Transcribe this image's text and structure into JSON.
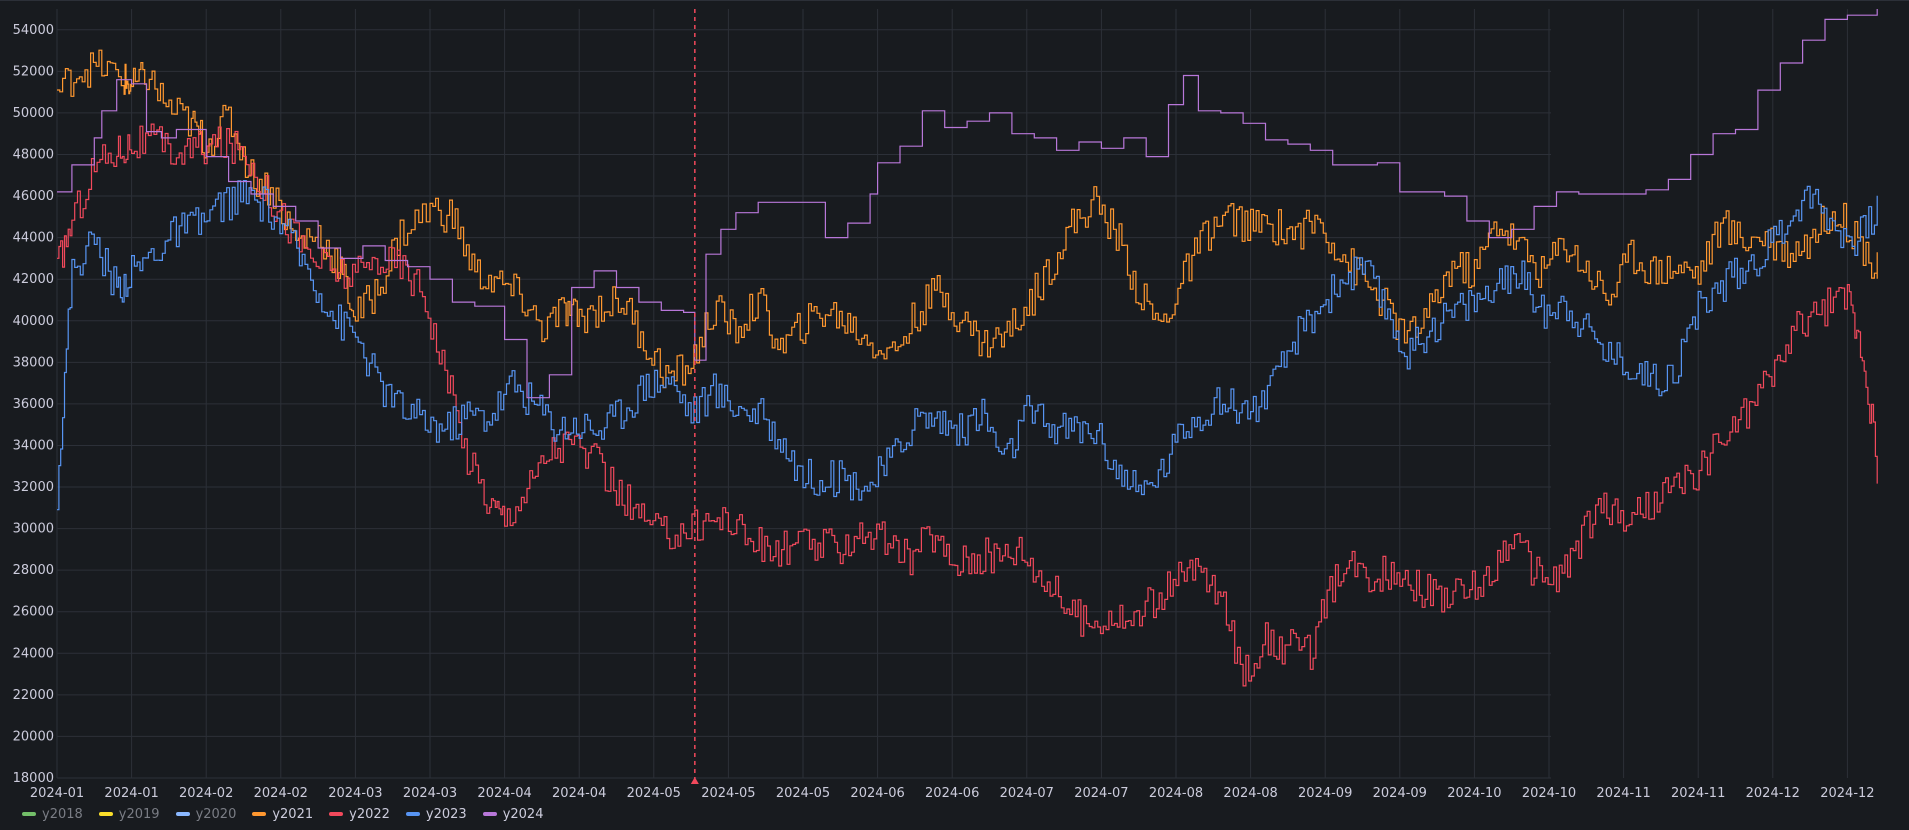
{
  "chart_data": {
    "type": "line",
    "title": "",
    "xlabel": "",
    "ylabel": "",
    "ylim": [
      18000,
      55000
    ],
    "yticks": [
      18000,
      20000,
      22000,
      24000,
      26000,
      28000,
      30000,
      32000,
      34000,
      36000,
      38000,
      40000,
      42000,
      44000,
      46000,
      48000,
      50000,
      52000,
      54000
    ],
    "xlim": [
      0,
      24.5
    ],
    "xtick_labels": [
      "2024-01",
      "2024-01",
      "2024-02",
      "2024-02",
      "2024-03",
      "2024-03",
      "2024-04",
      "2024-04",
      "2024-05",
      "2024-05",
      "2024-05",
      "2024-06",
      "2024-06",
      "2024-07",
      "2024-07",
      "2024-08",
      "2024-08",
      "2024-09",
      "2024-09",
      "2024-10",
      "2024-10",
      "2024-11",
      "2024-11",
      "2024-12",
      "2024-12"
    ],
    "xtick_positions": [
      0,
      1,
      2,
      3,
      4,
      5,
      6,
      7,
      8,
      9,
      10,
      11,
      12,
      13,
      14,
      15,
      16,
      17,
      18,
      19,
      20,
      21,
      22,
      23,
      24
    ],
    "grid": true,
    "legend_position": "bottom-left",
    "annotation": {
      "type": "vertical-dashed-line",
      "x": 8.55,
      "color": "#f2495c"
    },
    "series": [
      {
        "name": "y2018",
        "color": "#73bf69",
        "visible": false,
        "values": []
      },
      {
        "name": "y2019",
        "color": "#fade2a",
        "visible": false,
        "values": []
      },
      {
        "name": "y2020",
        "color": "#8ab8ff",
        "visible": false,
        "values": []
      },
      {
        "name": "y2021",
        "color": "#ff9830",
        "visible": true,
        "x": [
          0,
          0.3,
          0.6,
          0.9,
          1.0,
          1.2,
          1.5,
          1.8,
          2.0,
          2.3,
          2.6,
          2.9,
          3.2,
          3.5,
          3.8,
          4.0,
          4.3,
          4.6,
          5.0,
          5.3,
          5.6,
          5.9,
          6.2,
          6.5,
          6.8,
          7.0,
          7.3,
          7.6,
          7.9,
          8.2,
          8.5,
          8.8,
          9.1,
          9.4,
          9.7,
          10.0,
          10.3,
          10.6,
          10.9,
          11.2,
          11.5,
          11.8,
          12.1,
          12.4,
          12.7,
          13.0,
          13.3,
          13.6,
          13.9,
          14.2,
          14.5,
          14.8,
          15.1,
          15.4,
          15.7,
          16.0,
          16.3,
          16.6,
          16.9,
          17.2,
          17.5,
          17.8,
          18.1,
          18.4,
          18.7,
          19.0,
          19.3,
          19.6,
          19.9,
          20.2,
          20.5,
          20.8,
          21.1,
          21.4,
          21.7,
          22.0,
          22.3,
          22.6,
          22.9,
          23.2,
          23.5,
          23.8,
          24.1,
          24.4
        ],
        "values": [
          51000,
          52100,
          52200,
          51600,
          51200,
          51800,
          50200,
          49500,
          48500,
          49800,
          47000,
          46200,
          43800,
          44200,
          42500,
          40200,
          41500,
          44200,
          45400,
          45000,
          42300,
          41800,
          41200,
          39600,
          40500,
          40100,
          40700,
          40900,
          38800,
          37200,
          37900,
          40600,
          39500,
          41000,
          38600,
          39800,
          40500,
          39900,
          39000,
          38400,
          40200,
          41500,
          40200,
          38900,
          39300,
          40700,
          42600,
          44600,
          45700,
          44200,
          41300,
          39700,
          42100,
          44200,
          45000,
          44500,
          44600,
          44200,
          44800,
          43300,
          42000,
          40700,
          39100,
          40400,
          42700,
          42300,
          44800,
          43600,
          42300,
          43800,
          42500,
          41100,
          43200,
          42400,
          42600,
          42300,
          44600,
          43900,
          44100,
          43300,
          43900,
          45400,
          44200,
          42400
        ]
      },
      {
        "name": "y2022",
        "color": "#f2495c",
        "visible": true,
        "x": [
          0,
          0.2,
          0.5,
          0.8,
          1.0,
          1.3,
          1.6,
          1.9,
          2.2,
          2.5,
          2.8,
          3.1,
          3.4,
          3.7,
          4.0,
          4.3,
          4.6,
          4.9,
          5.2,
          5.5,
          5.8,
          6.0,
          6.3,
          6.6,
          6.9,
          7.2,
          7.5,
          7.8,
          8.1,
          8.4,
          8.7,
          9.0,
          9.3,
          9.6,
          9.9,
          10.2,
          10.5,
          10.8,
          11.1,
          11.4,
          11.7,
          12.0,
          12.3,
          12.6,
          12.9,
          13.2,
          13.5,
          13.8,
          14.1,
          14.4,
          14.7,
          15.0,
          15.3,
          15.6,
          15.9,
          16.2,
          16.5,
          16.8,
          17.1,
          17.4,
          17.7,
          18.0,
          18.3,
          18.6,
          18.9,
          19.2,
          19.5,
          19.8,
          20.1,
          20.4,
          20.7,
          21.0,
          21.3,
          21.6,
          21.9,
          22.2,
          22.5,
          22.8,
          23.1,
          23.4,
          23.7,
          24.0,
          24.2,
          24.4
        ],
        "values": [
          42500,
          44800,
          47500,
          48200,
          48500,
          48600,
          48000,
          48300,
          48500,
          48200,
          46200,
          44600,
          43100,
          42400,
          42100,
          43000,
          42700,
          41500,
          37500,
          33500,
          31200,
          30600,
          31900,
          33800,
          34200,
          33200,
          31800,
          30600,
          29700,
          29900,
          30400,
          30500,
          29400,
          28800,
          29300,
          29100,
          29200,
          29900,
          29400,
          28500,
          29800,
          28400,
          28600,
          28700,
          29100,
          27700,
          26400,
          25400,
          25900,
          25500,
          26600,
          27400,
          28100,
          26600,
          23100,
          24600,
          24300,
          24100,
          27300,
          28100,
          27700,
          28000,
          27000,
          26800,
          26900,
          27700,
          29700,
          27900,
          27500,
          29300,
          31200,
          30400,
          31000,
          31800,
          32400,
          33800,
          35000,
          36400,
          38200,
          40100,
          40600,
          41200,
          38600,
          33000
        ]
      },
      {
        "name": "y2023",
        "color": "#5794f2",
        "visible": true,
        "x": [
          0,
          0.2,
          0.5,
          0.8,
          1.0,
          1.3,
          1.6,
          1.9,
          2.2,
          2.5,
          2.8,
          3.1,
          3.4,
          3.7,
          4.0,
          4.3,
          4.6,
          4.9,
          5.2,
          5.5,
          5.8,
          6.1,
          6.4,
          6.7,
          7.0,
          7.3,
          7.6,
          7.9,
          8.2,
          8.5,
          8.8,
          9.1,
          9.4,
          9.7,
          10.0,
          10.3,
          10.6,
          10.9,
          11.2,
          11.5,
          11.8,
          12.1,
          12.4,
          12.7,
          13.0,
          13.3,
          13.6,
          13.9,
          14.2,
          14.5,
          14.8,
          15.1,
          15.4,
          15.7,
          16.0,
          16.3,
          16.6,
          16.9,
          17.2,
          17.5,
          17.8,
          18.1,
          18.4,
          18.7,
          19.0,
          19.3,
          19.6,
          19.9,
          20.2,
          20.5,
          20.8,
          21.1,
          21.4,
          21.7,
          22.0,
          22.3,
          22.6,
          22.9,
          23.2,
          23.5,
          23.8,
          24.1,
          24.4
        ],
        "values": [
          31800,
          42500,
          43900,
          41500,
          42300,
          43300,
          44300,
          44600,
          45600,
          46000,
          45500,
          44000,
          42200,
          40200,
          39300,
          37000,
          35800,
          35200,
          34800,
          35500,
          35400,
          37000,
          36000,
          34900,
          35000,
          34800,
          35800,
          37000,
          37200,
          35600,
          36600,
          35900,
          35500,
          34300,
          32500,
          32500,
          32300,
          32100,
          33400,
          35300,
          35300,
          34700,
          35600,
          33200,
          35600,
          34900,
          34800,
          34800,
          32900,
          31600,
          32800,
          34900,
          35800,
          36100,
          35700,
          36800,
          39200,
          40600,
          41900,
          42600,
          40600,
          38300,
          39700,
          40400,
          41000,
          41500,
          42400,
          40400,
          41000,
          39600,
          38400,
          37900,
          37100,
          37800,
          40600,
          41700,
          42600,
          43300,
          45000,
          46100,
          44800,
          43700,
          45300
        ]
      },
      {
        "name": "y2024",
        "color": "#b877d9",
        "visible": true,
        "x": [
          0,
          0.2,
          0.5,
          0.6,
          0.8,
          1.0,
          1.2,
          1.4,
          1.6,
          2.0,
          2.3,
          2.6,
          2.9,
          3.2,
          3.5,
          3.8,
          4.1,
          4.4,
          4.7,
          5.0,
          5.3,
          5.6,
          6.0,
          6.3,
          6.6,
          6.9,
          7.2,
          7.5,
          7.8,
          8.1,
          8.4,
          8.55,
          8.7,
          8.9,
          9.1,
          9.4,
          9.7,
          10.0,
          10.3,
          10.6,
          10.9,
          11.0,
          11.3,
          11.6,
          11.9,
          12.2,
          12.5,
          12.8,
          13.1,
          13.4,
          13.7,
          14.0,
          14.3,
          14.6,
          14.9,
          15.1,
          15.3,
          15.6,
          15.9,
          16.2,
          16.5,
          16.8,
          17.1,
          17.4,
          17.7,
          18.0,
          18.3,
          18.6,
          18.9,
          19.2,
          19.5,
          19.8,
          20.1,
          20.4,
          20.7,
          21.0,
          21.3,
          21.6,
          21.9,
          22.2,
          22.5,
          22.8,
          23.1,
          23.4,
          23.7,
          24.0,
          24.3,
          24.4
        ],
        "values": [
          46200,
          47500,
          48800,
          50100,
          51600,
          51400,
          49100,
          48800,
          49200,
          47900,
          46700,
          46100,
          45500,
          44800,
          43500,
          43000,
          43600,
          42900,
          42600,
          42000,
          40900,
          40700,
          39100,
          36300,
          37400,
          41600,
          42400,
          41600,
          40900,
          40500,
          40400,
          38100,
          43200,
          44400,
          45200,
          45700,
          45700,
          45700,
          44000,
          44700,
          46100,
          47600,
          48400,
          50100,
          49300,
          49600,
          50000,
          49000,
          48800,
          48200,
          48600,
          48300,
          48800,
          47900,
          50400,
          51800,
          50100,
          50000,
          49500,
          48700,
          48500,
          48200,
          47500,
          47500,
          47600,
          46200,
          46200,
          46000,
          44800,
          44000,
          44400,
          45500,
          46200,
          46100,
          46100,
          46100,
          46300,
          46800,
          48000,
          49000,
          49200,
          51100,
          52400,
          53500,
          54500,
          54700,
          54700,
          55000
        ]
      }
    ]
  },
  "legend": {
    "items": [
      {
        "label": "y2018",
        "color": "#73bf69",
        "hidden": true
      },
      {
        "label": "y2019",
        "color": "#fade2a",
        "hidden": true
      },
      {
        "label": "y2020",
        "color": "#8ab8ff",
        "hidden": true
      },
      {
        "label": "y2021",
        "color": "#ff9830",
        "hidden": false
      },
      {
        "label": "y2022",
        "color": "#f2495c",
        "hidden": false
      },
      {
        "label": "y2023",
        "color": "#5794f2",
        "hidden": false
      },
      {
        "label": "y2024",
        "color": "#b877d9",
        "hidden": false
      }
    ]
  },
  "colors": {
    "background": "#181b1f",
    "grid": "#2c3038",
    "text": "#ccccdc",
    "annotation": "#f2495c"
  }
}
